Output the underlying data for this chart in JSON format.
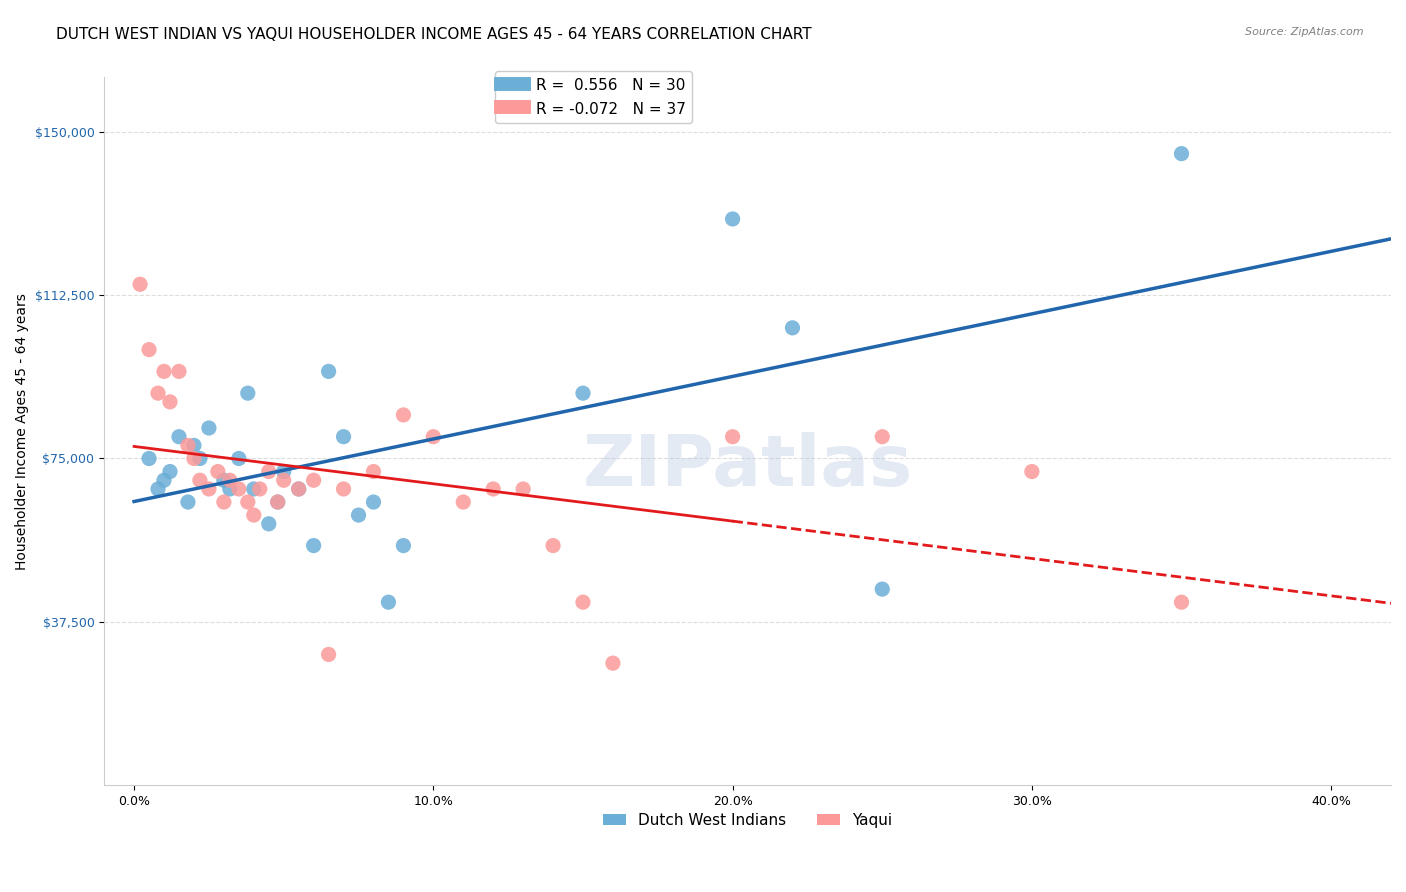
{
  "title": "DUTCH WEST INDIAN VS YAQUI HOUSEHOLDER INCOME AGES 45 - 64 YEARS CORRELATION CHART",
  "source": "Source: ZipAtlas.com",
  "ylabel": "Householder Income Ages 45 - 64 years",
  "xlabel_ticks": [
    "0.0%",
    "10.0%",
    "20.0%",
    "30.0%",
    "40.0%"
  ],
  "xlabel_vals": [
    0.0,
    0.1,
    0.2,
    0.3,
    0.4
  ],
  "ylabel_ticks": [
    "$37,500",
    "$75,000",
    "$112,500",
    "$150,000"
  ],
  "ylabel_vals": [
    37500,
    75000,
    112500,
    150000
  ],
  "ylim": [
    0,
    162500
  ],
  "xlim": [
    -0.01,
    0.42
  ],
  "blue_R": 0.556,
  "blue_N": 30,
  "pink_R": -0.072,
  "pink_N": 37,
  "blue_color": "#6baed6",
  "pink_color": "#fb9a99",
  "blue_line_color": "#2166ac",
  "pink_line_color": "#e31a1c",
  "legend_blue_label": "R =   0.556   N = 30",
  "legend_pink_label": "R = -0.072   N = 37",
  "dwi_x": [
    0.005,
    0.008,
    0.01,
    0.012,
    0.015,
    0.018,
    0.02,
    0.022,
    0.025,
    0.03,
    0.032,
    0.035,
    0.038,
    0.04,
    0.045,
    0.048,
    0.05,
    0.055,
    0.06,
    0.065,
    0.07,
    0.075,
    0.08,
    0.085,
    0.09,
    0.15,
    0.2,
    0.22,
    0.25,
    0.35
  ],
  "dwi_y": [
    75000,
    68000,
    70000,
    72000,
    80000,
    65000,
    78000,
    75000,
    82000,
    70000,
    68000,
    75000,
    90000,
    68000,
    60000,
    65000,
    72000,
    68000,
    55000,
    95000,
    80000,
    62000,
    65000,
    42000,
    55000,
    90000,
    130000,
    105000,
    45000,
    145000
  ],
  "yaqui_x": [
    0.002,
    0.005,
    0.008,
    0.01,
    0.012,
    0.015,
    0.018,
    0.02,
    0.022,
    0.025,
    0.028,
    0.03,
    0.032,
    0.035,
    0.038,
    0.04,
    0.042,
    0.045,
    0.048,
    0.05,
    0.055,
    0.06,
    0.065,
    0.07,
    0.08,
    0.09,
    0.1,
    0.11,
    0.12,
    0.13,
    0.14,
    0.15,
    0.16,
    0.2,
    0.25,
    0.3,
    0.35
  ],
  "yaqui_y": [
    115000,
    100000,
    90000,
    95000,
    88000,
    95000,
    78000,
    75000,
    70000,
    68000,
    72000,
    65000,
    70000,
    68000,
    65000,
    62000,
    68000,
    72000,
    65000,
    70000,
    68000,
    70000,
    30000,
    68000,
    72000,
    85000,
    80000,
    65000,
    68000,
    68000,
    55000,
    42000,
    28000,
    80000,
    80000,
    72000,
    42000
  ],
  "watermark": "ZIPatlas",
  "background_color": "#ffffff",
  "grid_color": "#dddddd",
  "title_fontsize": 11,
  "axis_label_fontsize": 10,
  "tick_fontsize": 9,
  "legend_fontsize": 10
}
